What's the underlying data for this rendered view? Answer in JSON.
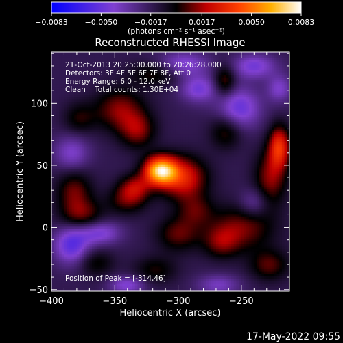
{
  "chart_data": {
    "type": "heatmap",
    "title": "Reconstructed RHESSI Image",
    "xlabel": "Heliocentric X (arcsec)",
    "ylabel": "Heliocentric Y (arcsec)",
    "xlim": [
      -400,
      -212
    ],
    "ylim": [
      -51,
      141
    ],
    "x_ticks": [
      -400,
      -350,
      -300,
      -250
    ],
    "x_tick_labels": [
      "−400",
      "−350",
      "−300",
      "−250"
    ],
    "y_ticks": [
      -50,
      0,
      50,
      100
    ],
    "y_tick_labels": [
      "−50",
      "0",
      "50",
      "100"
    ],
    "grid": false,
    "annotations": [
      "21-Oct-2013 20:25:00.000 to 20:26:28.000",
      "Detectors: 3F 4F 5F 6F 7F 8F, Att 0",
      "Energy Range: 6.0 - 12.0 keV",
      "Clean    Total counts: 1.30E+04"
    ],
    "peak": {
      "label": "Position of Peak = [-314,46]",
      "x": -314,
      "y": 46
    },
    "colorbar": {
      "min": -0.0083,
      "max": 0.0083,
      "tick_values": [
        -0.0083,
        -0.005,
        -0.0017,
        0.0017,
        0.005,
        0.0083
      ],
      "tick_labels": [
        "−0.0083",
        "−0.0050",
        "−0.0017",
        "0.0017",
        "0.0050",
        "0.0083"
      ],
      "units_label": "(photons cm⁻² s⁻¹ asec⁻²)"
    },
    "sources": [
      {
        "x": -314,
        "y": 46,
        "sigma_x": 9,
        "sigma_y": 8,
        "value": 0.0083
      },
      {
        "x": -296,
        "y": 40,
        "sigma_x": 13,
        "sigma_y": 12,
        "value": 0.0045
      },
      {
        "x": -334,
        "y": 33,
        "sigma_x": 9,
        "sigma_y": 7,
        "value": 0.003
      },
      {
        "x": -346,
        "y": 95,
        "sigma_x": 14,
        "sigma_y": 12,
        "value": 0.003
      },
      {
        "x": -332,
        "y": 78,
        "sigma_x": 10,
        "sigma_y": 10,
        "value": 0.0028
      },
      {
        "x": -382,
        "y": 30,
        "sigma_x": 10,
        "sigma_y": 12,
        "value": 0.0026
      },
      {
        "x": -376,
        "y": 10,
        "sigma_x": 12,
        "sigma_y": 9,
        "value": 0.0026
      },
      {
        "x": -340,
        "y": 22,
        "sigma_x": 11,
        "sigma_y": 8,
        "value": 0.0024
      },
      {
        "x": -300,
        "y": -5,
        "sigma_x": 12,
        "sigma_y": 10,
        "value": 0.0025
      },
      {
        "x": -250,
        "y": 0,
        "sigma_x": 18,
        "sigma_y": 13,
        "value": 0.0028
      },
      {
        "x": -266,
        "y": -12,
        "sigma_x": 10,
        "sigma_y": 9,
        "value": 0.0022
      },
      {
        "x": -220,
        "y": 65,
        "sigma_x": 6,
        "sigma_y": 12,
        "value": 0.0048
      },
      {
        "x": -227,
        "y": 40,
        "sigma_x": 9,
        "sigma_y": 16,
        "value": 0.003
      },
      {
        "x": -228,
        "y": -30,
        "sigma_x": 11,
        "sigma_y": 9,
        "value": 0.0024
      },
      {
        "x": -263,
        "y": 118,
        "sigma_x": 6,
        "sigma_y": 9,
        "value": 0.0028
      },
      {
        "x": -262,
        "y": 78,
        "sigma_x": 9,
        "sigma_y": 10,
        "value": 0.0024
      },
      {
        "x": -286,
        "y": 14,
        "sigma_x": 10,
        "sigma_y": 9,
        "value": 0.002
      },
      {
        "x": -365,
        "y": -28,
        "sigma_x": 10,
        "sigma_y": 8,
        "value": 0.0018
      },
      {
        "x": -318,
        "y": -34,
        "sigma_x": 12,
        "sigma_y": 8,
        "value": 0.0018
      },
      {
        "x": -378,
        "y": 88,
        "sigma_x": 9,
        "sigma_y": 9,
        "value": 0.0018
      },
      {
        "x": -318,
        "y": 124,
        "sigma_x": 14,
        "sigma_y": 7,
        "value": 0.002
      },
      {
        "x": -284,
        "y": 112,
        "sigma_x": 10,
        "sigma_y": 8,
        "value": -0.003
      },
      {
        "x": -252,
        "y": 96,
        "sigma_x": 12,
        "sigma_y": 12,
        "value": -0.0035
      },
      {
        "x": -384,
        "y": 60,
        "sigma_x": 10,
        "sigma_y": 10,
        "value": -0.0025
      },
      {
        "x": -362,
        "y": -4,
        "sigma_x": 12,
        "sigma_y": 7,
        "value": -0.003
      },
      {
        "x": -384,
        "y": -14,
        "sigma_x": 10,
        "sigma_y": 11,
        "value": -0.0038
      },
      {
        "x": -340,
        "y": -46,
        "sigma_x": 10,
        "sigma_y": 5,
        "value": -0.0028
      },
      {
        "x": -296,
        "y": 132,
        "sigma_x": 14,
        "sigma_y": 7,
        "value": -0.0028
      },
      {
        "x": -240,
        "y": 130,
        "sigma_x": 12,
        "sigma_y": 7,
        "value": -0.003
      },
      {
        "x": -240,
        "y": 20,
        "sigma_x": 8,
        "sigma_y": 8,
        "value": -0.002
      },
      {
        "x": -220,
        "y": 112,
        "sigma_x": 7,
        "sigma_y": 8,
        "value": -0.0024
      },
      {
        "x": -268,
        "y": -46,
        "sigma_x": 12,
        "sigma_y": 6,
        "value": -0.0022
      }
    ]
  },
  "footer": {
    "timestamp": "17-May-2022 09:55"
  }
}
